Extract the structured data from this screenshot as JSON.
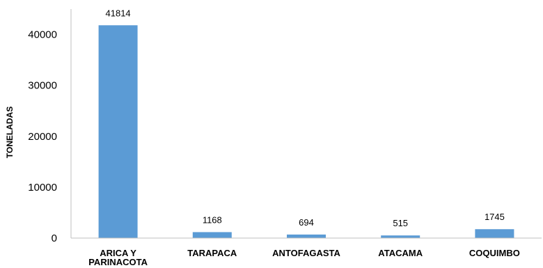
{
  "chart_data": {
    "type": "bar",
    "title": "",
    "xlabel": "",
    "ylabel": "TONELADAS",
    "categories": [
      [
        "ARICA Y",
        "PARINACOTA"
      ],
      [
        "TARAPACA"
      ],
      [
        "ANTOFAGASTA"
      ],
      [
        "ATACAMA"
      ],
      [
        "COQUIMBO"
      ]
    ],
    "values": [
      41814,
      1168,
      694,
      515,
      1745
    ],
    "ylim": [
      0,
      45000
    ],
    "yticks": [
      0,
      10000,
      20000,
      30000,
      40000
    ],
    "grid": false,
    "legend": "none",
    "bar_color": "#5b9bd5"
  }
}
